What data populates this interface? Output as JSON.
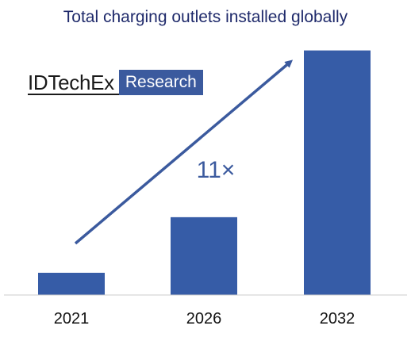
{
  "chart_data": {
    "type": "bar",
    "title": "Total charging outlets installed globally",
    "categories": [
      "2021",
      "2026",
      "2032"
    ],
    "values": [
      1,
      3.5,
      11
    ],
    "annotation": "11×",
    "xlabel": "",
    "ylabel": "",
    "ylim": [
      0,
      11.2
    ],
    "grid": false,
    "legend": "none",
    "bar_color": "#365ca7",
    "arrow_color": "#3b5a9e"
  },
  "brand": {
    "name": "IDTechEx",
    "tag": "Research"
  },
  "colors": {
    "title": "#1f2a6b",
    "brand_tag_bg": "#3b5a9e",
    "axis": "#cccccc"
  }
}
